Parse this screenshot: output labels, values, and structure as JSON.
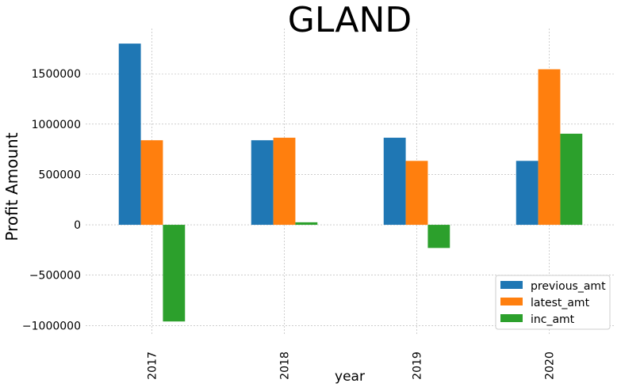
{
  "chart_data": {
    "type": "bar",
    "title": "GLAND",
    "xlabel": "year",
    "ylabel": "Profit Amount",
    "categories": [
      "2017",
      "2018",
      "2019",
      "2020"
    ],
    "series": [
      {
        "name": "previous_amt",
        "color": "#1f77b4",
        "values": [
          1800000,
          840000,
          865000,
          635000
        ]
      },
      {
        "name": "latest_amt",
        "color": "#ff7f0e",
        "values": [
          840000,
          865000,
          635000,
          1545000
        ]
      },
      {
        "name": "inc_amt",
        "color": "#2ca02c",
        "values": [
          -960000,
          25000,
          -230000,
          905000
        ]
      }
    ],
    "ylim": [
      -1100000,
      1950000
    ],
    "yticks": [
      -1000000,
      -500000,
      0,
      500000,
      1000000,
      1500000
    ],
    "ytick_labels": [
      "−1000000",
      "−500000",
      "0",
      "500000",
      "1000000",
      "1500000"
    ],
    "grid": true,
    "legend_position": "lower-right"
  }
}
